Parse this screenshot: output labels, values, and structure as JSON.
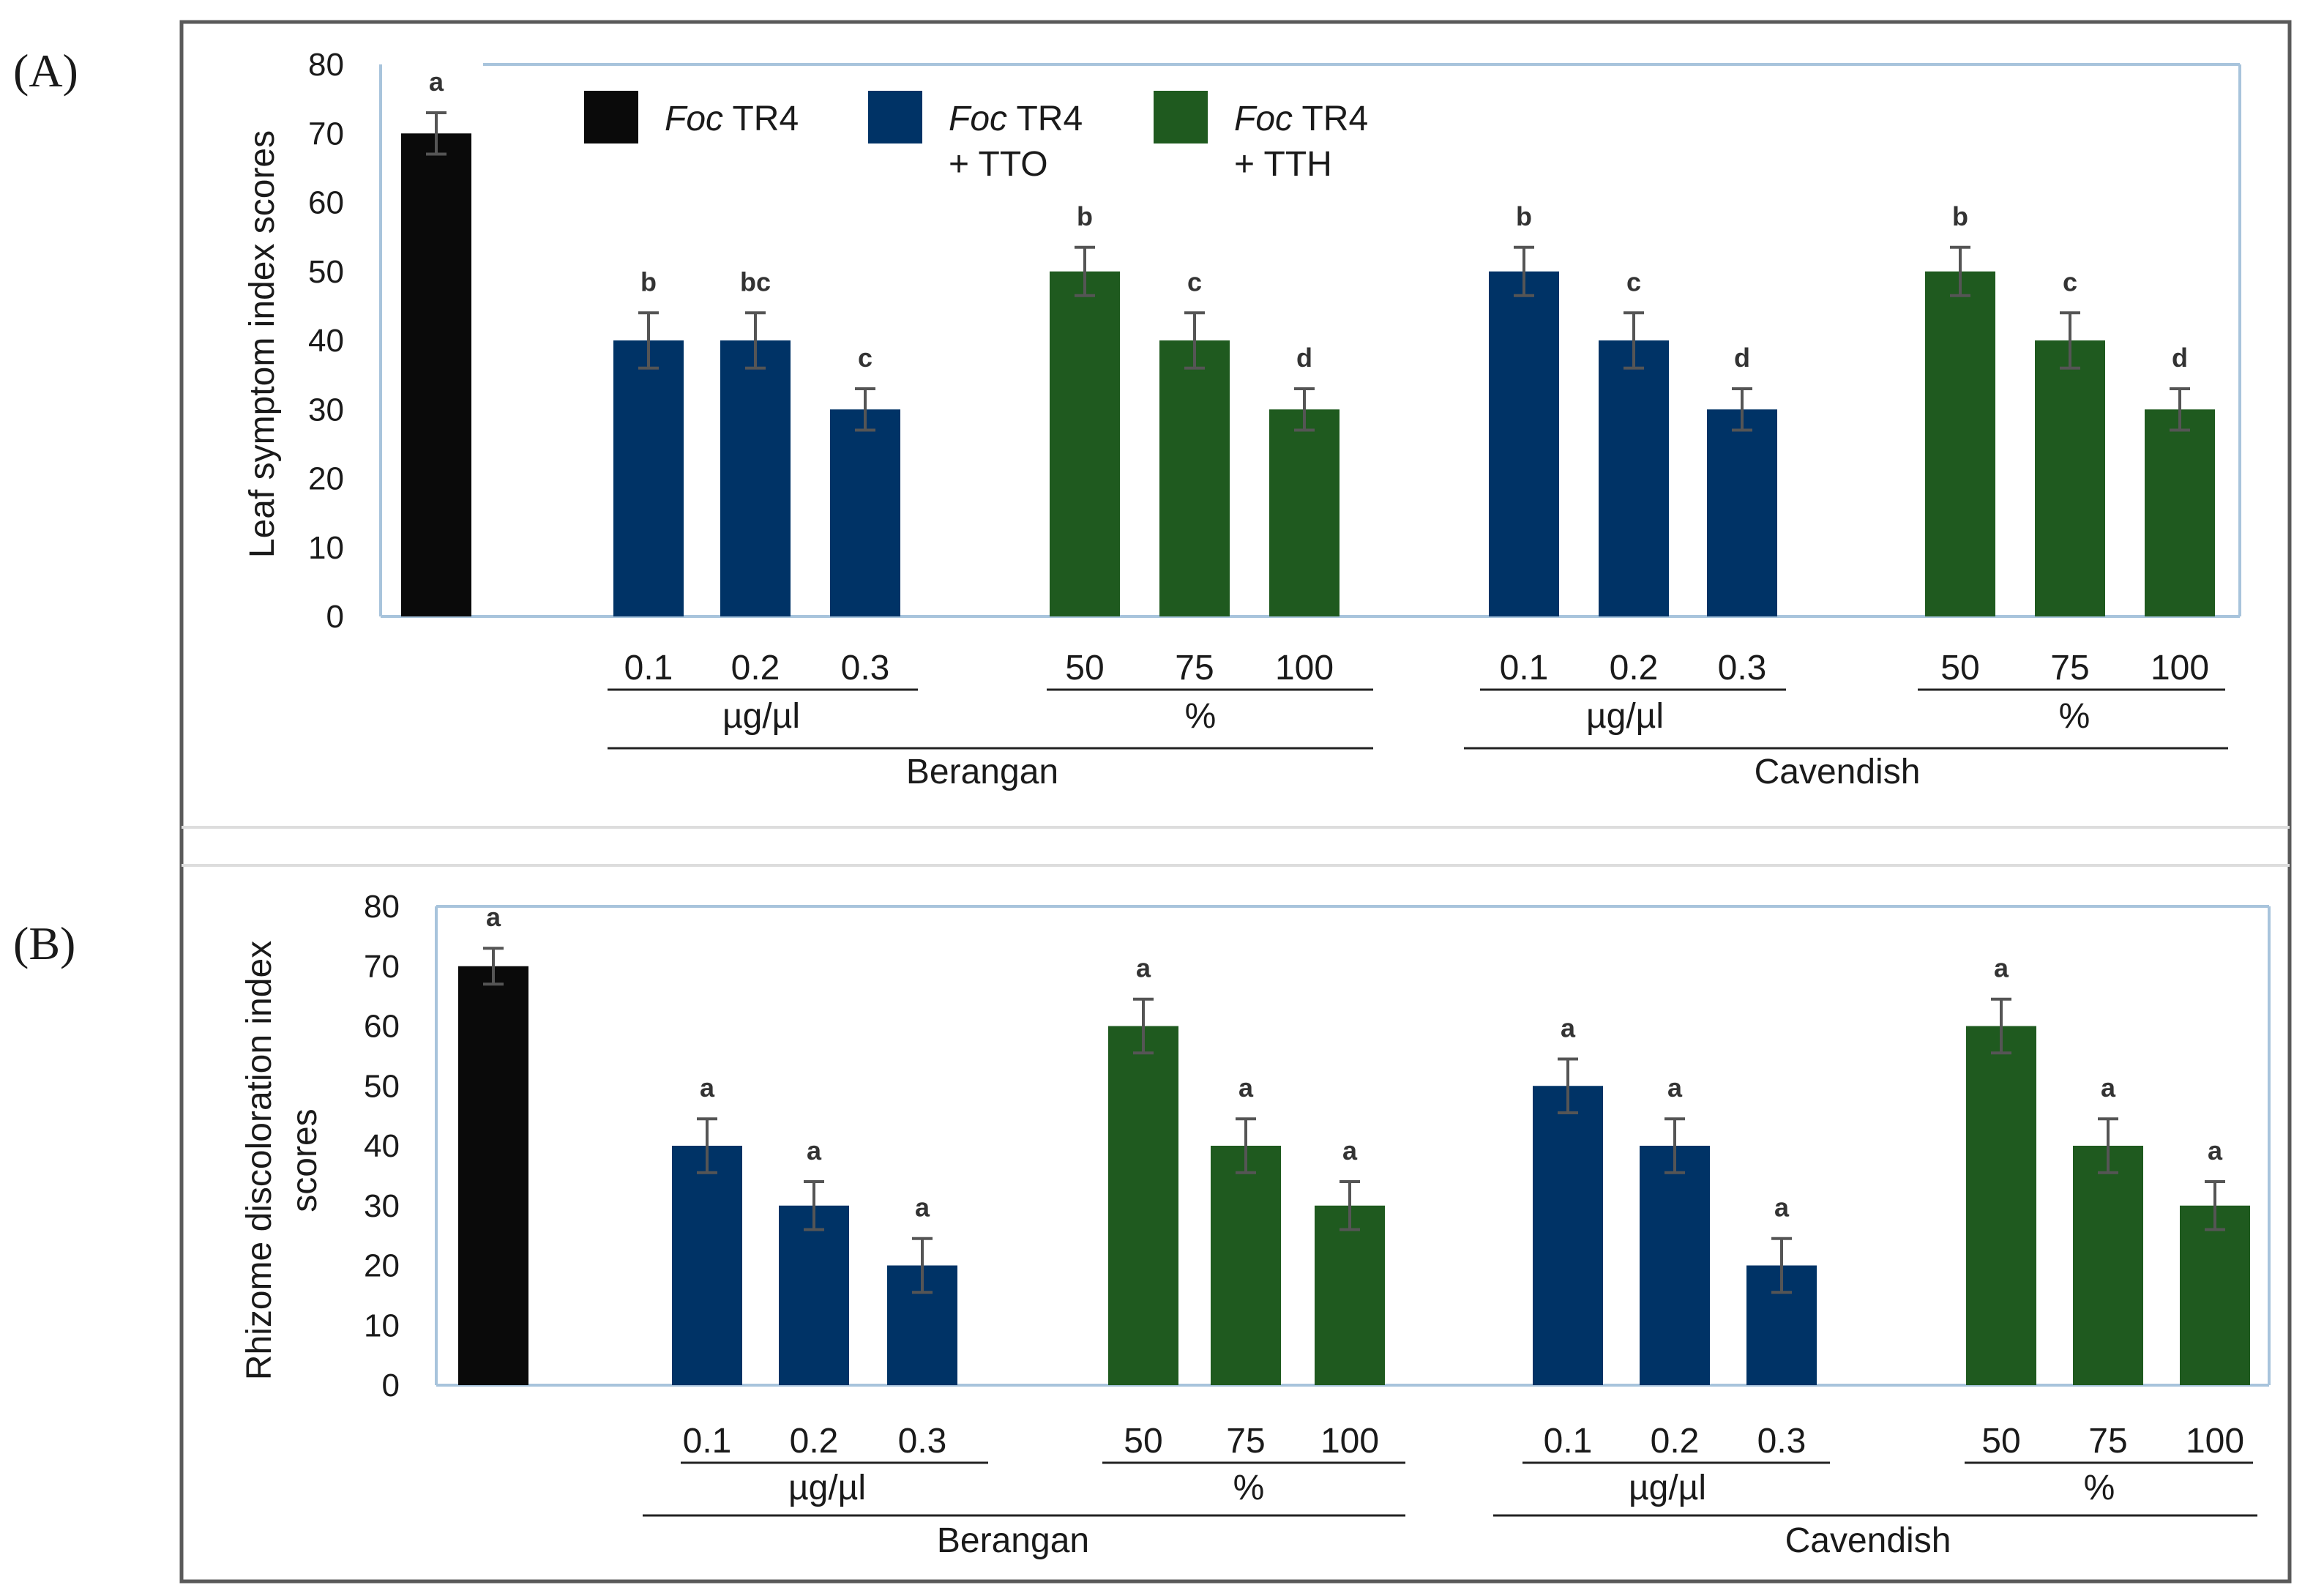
{
  "colors": {
    "foc": "#0a0a0a",
    "tto": "#003366",
    "tth": "#1f5a1f",
    "frame": "#5a5a5a",
    "plot_border": "#a8c4dc",
    "error_bar": "#555555"
  },
  "legend": [
    {
      "italic": "Foc",
      "line1": " TR4",
      "line2": "",
      "color_key": "foc"
    },
    {
      "italic": "Foc",
      "line1": " TR4",
      "line2": "+ TTO",
      "color_key": "tto"
    },
    {
      "italic": "Foc",
      "line1": " TR4",
      "line2": "+ TTH",
      "color_key": "tth"
    }
  ],
  "groups": {
    "cultivars": [
      "Berangan",
      "Cavendish"
    ],
    "units": [
      "µg/µl",
      "%",
      "µg/µl",
      "%"
    ],
    "doses": [
      "0.1",
      "0.2",
      "0.3",
      "50",
      "75",
      "100",
      "0.1",
      "0.2",
      "0.3",
      "50",
      "75",
      "100"
    ]
  },
  "chart_data": [
    {
      "type": "bar",
      "panel_label": "(A)",
      "ylabel": "Leaf symptom index scores",
      "ylim": [
        0,
        80
      ],
      "yticks": [
        "0",
        "10",
        "20",
        "30",
        "40",
        "50",
        "60",
        "70",
        "80"
      ],
      "bars": [
        {
          "group": "Foc TR4",
          "dose": "",
          "value": 70,
          "err": 3,
          "sig": "a",
          "color_key": "foc"
        },
        {
          "group": "Berangan TTO",
          "dose": "0.1",
          "value": 40,
          "err": 4,
          "sig": "b",
          "color_key": "tto"
        },
        {
          "group": "Berangan TTO",
          "dose": "0.2",
          "value": 40,
          "err": 4,
          "sig": "bc",
          "color_key": "tto"
        },
        {
          "group": "Berangan TTO",
          "dose": "0.3",
          "value": 30,
          "err": 3,
          "sig": "c",
          "color_key": "tto"
        },
        {
          "group": "Berangan TTH",
          "dose": "50",
          "value": 50,
          "err": 3.5,
          "sig": "b",
          "color_key": "tth"
        },
        {
          "group": "Berangan TTH",
          "dose": "75",
          "value": 40,
          "err": 4,
          "sig": "c",
          "color_key": "tth"
        },
        {
          "group": "Berangan TTH",
          "dose": "100",
          "value": 30,
          "err": 3,
          "sig": "d",
          "color_key": "tth"
        },
        {
          "group": "Cavendish TTO",
          "dose": "0.1",
          "value": 50,
          "err": 3.5,
          "sig": "b",
          "color_key": "tto"
        },
        {
          "group": "Cavendish TTO",
          "dose": "0.2",
          "value": 40,
          "err": 4,
          "sig": "c",
          "color_key": "tto"
        },
        {
          "group": "Cavendish TTO",
          "dose": "0.3",
          "value": 30,
          "err": 3,
          "sig": "d",
          "color_key": "tto"
        },
        {
          "group": "Cavendish TTH",
          "dose": "50",
          "value": 50,
          "err": 3.5,
          "sig": "b",
          "color_key": "tth"
        },
        {
          "group": "Cavendish TTH",
          "dose": "75",
          "value": 40,
          "err": 4,
          "sig": "c",
          "color_key": "tth"
        },
        {
          "group": "Cavendish TTH",
          "dose": "100",
          "value": 30,
          "err": 3,
          "sig": "d",
          "color_key": "tth"
        }
      ]
    },
    {
      "type": "bar",
      "panel_label": "(B)",
      "ylabel_lines": [
        "Rhizome discoloration index",
        "scores"
      ],
      "ylim": [
        0,
        80
      ],
      "yticks": [
        "0",
        "10",
        "20",
        "30",
        "40",
        "50",
        "60",
        "70",
        "80"
      ],
      "bars": [
        {
          "group": "Foc TR4",
          "dose": "",
          "value": 70,
          "err": 3,
          "sig": "a",
          "color_key": "foc"
        },
        {
          "group": "Berangan TTO",
          "dose": "0.1",
          "value": 40,
          "err": 4.5,
          "sig": "a",
          "color_key": "tto"
        },
        {
          "group": "Berangan TTO",
          "dose": "0.2",
          "value": 30,
          "err": 4,
          "sig": "a",
          "color_key": "tto"
        },
        {
          "group": "Berangan TTO",
          "dose": "0.3",
          "value": 20,
          "err": 4.5,
          "sig": "a",
          "color_key": "tto"
        },
        {
          "group": "Berangan TTH",
          "dose": "50",
          "value": 60,
          "err": 4.5,
          "sig": "a",
          "color_key": "tth"
        },
        {
          "group": "Berangan TTH",
          "dose": "75",
          "value": 40,
          "err": 4.5,
          "sig": "a",
          "color_key": "tth"
        },
        {
          "group": "Berangan TTH",
          "dose": "100",
          "value": 30,
          "err": 4,
          "sig": "a",
          "color_key": "tth"
        },
        {
          "group": "Cavendish TTO",
          "dose": "0.1",
          "value": 50,
          "err": 4.5,
          "sig": "a",
          "color_key": "tto"
        },
        {
          "group": "Cavendish TTO",
          "dose": "0.2",
          "value": 40,
          "err": 4.5,
          "sig": "a",
          "color_key": "tto"
        },
        {
          "group": "Cavendish TTO",
          "dose": "0.3",
          "value": 20,
          "err": 4.5,
          "sig": "a",
          "color_key": "tto"
        },
        {
          "group": "Cavendish TTH",
          "dose": "50",
          "value": 60,
          "err": 4.5,
          "sig": "a",
          "color_key": "tth"
        },
        {
          "group": "Cavendish TTH",
          "dose": "75",
          "value": 40,
          "err": 4.5,
          "sig": "a",
          "color_key": "tth"
        },
        {
          "group": "Cavendish TTH",
          "dose": "100",
          "value": 30,
          "err": 4,
          "sig": "a",
          "color_key": "tth"
        }
      ]
    }
  ]
}
